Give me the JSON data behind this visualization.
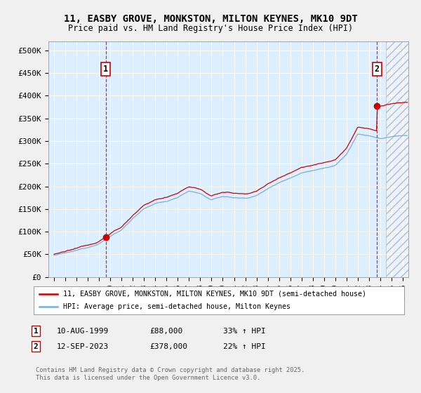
{
  "title": "11, EASBY GROVE, MONKSTON, MILTON KEYNES, MK10 9DT",
  "subtitle": "Price paid vs. HM Land Registry's House Price Index (HPI)",
  "ylabel_ticks": [
    "£0",
    "£50K",
    "£100K",
    "£150K",
    "£200K",
    "£250K",
    "£300K",
    "£350K",
    "£400K",
    "£450K",
    "£500K"
  ],
  "ytick_values": [
    0,
    50000,
    100000,
    150000,
    200000,
    250000,
    300000,
    350000,
    400000,
    450000,
    500000
  ],
  "xlim": [
    1994.5,
    2026.5
  ],
  "ylim": [
    0,
    520000
  ],
  "purchase1_x": 1999.61,
  "purchase1_y": 88000,
  "purchase2_x": 2023.71,
  "purchase2_y": 378000,
  "legend_line1": "11, EASBY GROVE, MONKSTON, MILTON KEYNES, MK10 9DT (semi-detached house)",
  "legend_line2": "HPI: Average price, semi-detached house, Milton Keynes",
  "footnote": "Contains HM Land Registry data © Crown copyright and database right 2025.\nThis data is licensed under the Open Government Licence v3.0.",
  "line_color_red": "#cc0000",
  "line_color_blue": "#7ab0d4",
  "hatch_start_x": 2024.5,
  "plot_bg": "#ddeeff",
  "grid_color": "#ffffff",
  "box_label1": "10-AUG-1999",
  "box_price1": "£88,000",
  "box_pct1": "33% ↑ HPI",
  "box_label2": "12-SEP-2023",
  "box_price2": "£378,000",
  "box_pct2": "22% ↑ HPI"
}
